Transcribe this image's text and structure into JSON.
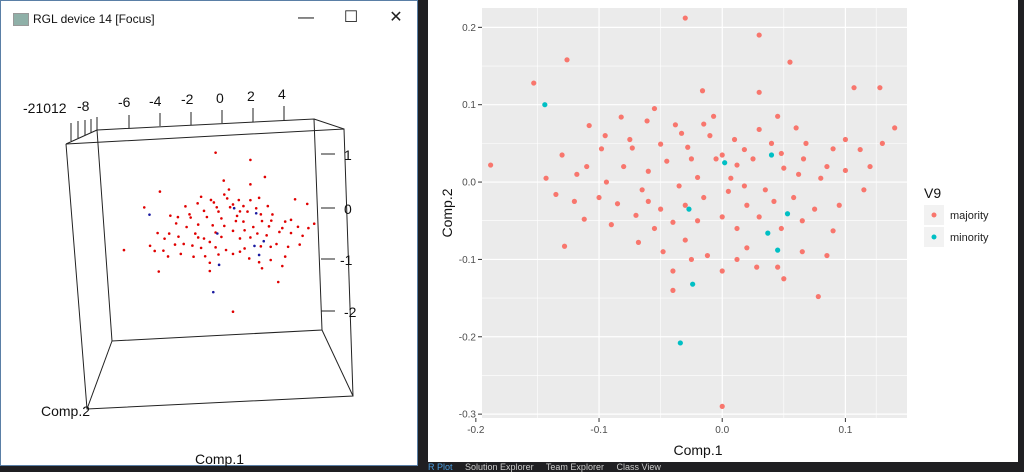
{
  "rgl_window": {
    "title": "RGL device 14 [Focus]",
    "controls": {
      "minimize": "—",
      "maximize": "☐",
      "close": "✕"
    },
    "top_ticks": [
      "-6",
      "-4",
      "-2",
      "0",
      "2",
      "4"
    ],
    "top_ticks_overlap": [
      "-21012",
      "-8"
    ],
    "right_ticks": [
      "1",
      "0",
      "-1",
      "-2"
    ],
    "xlabel": "Comp.1",
    "ylabel": "Comp.2"
  },
  "bottom_tabs": [
    "R Plot",
    "Solution Explorer",
    "Team Explorer",
    "Class View"
  ],
  "colors": {
    "majority": "#F8766D",
    "minority": "#00BFC4",
    "panel": "#EBEBEB",
    "rgl_point": "#e00000",
    "rgl_minority": "#1a1aa0"
  },
  "chart_data": {
    "type": "scatter",
    "xlabel": "Comp.1",
    "ylabel": "Comp.2",
    "xlim": [
      -0.195,
      0.15
    ],
    "ylim": [
      -0.305,
      0.225
    ],
    "xticks": [
      "-0.2",
      "-0.1",
      "0.0",
      "0.1"
    ],
    "xtick_values": [
      -0.2,
      -0.1,
      0,
      0.1
    ],
    "yticks": [
      "0.2",
      "0.1",
      "0.0",
      "-0.1",
      "-0.2",
      "-0.3"
    ],
    "ytick_values": [
      0.2,
      0.1,
      0,
      -0.1,
      -0.2,
      -0.3
    ],
    "grid": true,
    "legend": {
      "title": "V9",
      "position": "right",
      "entries": [
        "majority",
        "minority"
      ]
    },
    "series": [
      {
        "name": "majority",
        "points": [
          [
            -0.188,
            0.022
          ],
          [
            -0.153,
            0.128
          ],
          [
            -0.126,
            0.158
          ],
          [
            -0.03,
            0.212
          ],
          [
            0.03,
            0.19
          ],
          [
            0.055,
            0.155
          ],
          [
            0.128,
            0.122
          ],
          [
            0.14,
            0.07
          ],
          [
            -0.128,
            -0.083
          ],
          [
            0.078,
            -0.148
          ],
          [
            0.0,
            -0.29
          ],
          [
            -0.016,
            0.118
          ],
          [
            0.03,
            0.116
          ],
          [
            -0.007,
            0.085
          ],
          [
            0.107,
            0.122
          ],
          [
            -0.108,
            0.073
          ],
          [
            -0.082,
            0.084
          ],
          [
            -0.061,
            0.079
          ],
          [
            -0.038,
            0.074
          ],
          [
            -0.13,
            0.035
          ],
          [
            -0.098,
            0.043
          ],
          [
            -0.073,
            0.044
          ],
          [
            -0.05,
            0.049
          ],
          [
            -0.033,
            0.063
          ],
          [
            -0.01,
            0.06
          ],
          [
            0.01,
            0.055
          ],
          [
            0.03,
            0.068
          ],
          [
            0.045,
            0.085
          ],
          [
            0.068,
            0.05
          ],
          [
            0.09,
            0.043
          ],
          [
            0.112,
            0.042
          ],
          [
            0.13,
            0.05
          ],
          [
            -0.143,
            0.005
          ],
          [
            -0.118,
            0.01
          ],
          [
            -0.094,
            0.0
          ],
          [
            -0.08,
            0.02
          ],
          [
            -0.06,
            0.014
          ],
          [
            -0.045,
            0.027
          ],
          [
            -0.025,
            0.03
          ],
          [
            -0.02,
            0.006
          ],
          [
            0.0,
            0.035
          ],
          [
            0.012,
            0.022
          ],
          [
            0.025,
            0.03
          ],
          [
            0.05,
            0.018
          ],
          [
            0.066,
            0.03
          ],
          [
            0.08,
            0.005
          ],
          [
            0.1,
            0.015
          ],
          [
            0.12,
            0.02
          ],
          [
            -0.135,
            -0.016
          ],
          [
            -0.12,
            -0.025
          ],
          [
            -0.1,
            -0.02
          ],
          [
            -0.085,
            -0.028
          ],
          [
            -0.065,
            -0.01
          ],
          [
            -0.05,
            -0.035
          ],
          [
            -0.035,
            -0.005
          ],
          [
            -0.015,
            -0.02
          ],
          [
            0.005,
            -0.012
          ],
          [
            0.02,
            -0.03
          ],
          [
            0.035,
            -0.01
          ],
          [
            0.058,
            -0.02
          ],
          [
            0.075,
            -0.035
          ],
          [
            0.095,
            -0.03
          ],
          [
            0.115,
            -0.01
          ],
          [
            -0.112,
            -0.048
          ],
          [
            -0.09,
            -0.055
          ],
          [
            -0.07,
            -0.043
          ],
          [
            -0.055,
            -0.06
          ],
          [
            -0.04,
            -0.052
          ],
          [
            -0.02,
            -0.05
          ],
          [
            0.0,
            -0.045
          ],
          [
            0.012,
            -0.06
          ],
          [
            0.03,
            -0.045
          ],
          [
            0.048,
            -0.06
          ],
          [
            0.065,
            -0.05
          ],
          [
            0.09,
            -0.063
          ],
          [
            -0.068,
            -0.078
          ],
          [
            -0.048,
            -0.09
          ],
          [
            -0.03,
            -0.075
          ],
          [
            -0.012,
            -0.095
          ],
          [
            0.012,
            -0.1
          ],
          [
            0.02,
            -0.085
          ],
          [
            0.045,
            -0.11
          ],
          [
            0.05,
            -0.125
          ],
          [
            0.065,
            -0.09
          ],
          [
            0.085,
            -0.095
          ],
          [
            -0.04,
            -0.115
          ],
          [
            -0.025,
            -0.1
          ],
          [
            -0.04,
            -0.14
          ],
          [
            0.0,
            -0.115
          ],
          [
            0.028,
            -0.11
          ],
          [
            -0.095,
            0.06
          ],
          [
            -0.055,
            0.095
          ],
          [
            -0.028,
            0.045
          ],
          [
            -0.005,
            0.03
          ],
          [
            0.018,
            0.042
          ],
          [
            0.04,
            0.05
          ],
          [
            0.06,
            0.07
          ],
          [
            0.1,
            0.055
          ],
          [
            -0.075,
            0.055
          ],
          [
            -0.015,
            0.075
          ],
          [
            0.007,
            0.005
          ],
          [
            0.042,
            -0.025
          ],
          [
            -0.06,
            -0.025
          ],
          [
            -0.03,
            -0.03
          ],
          [
            0.062,
            0.01
          ],
          [
            0.085,
            0.02
          ],
          [
            -0.11,
            0.02
          ],
          [
            0.018,
            -0.005
          ],
          [
            0.048,
            0.037
          ]
        ]
      },
      {
        "name": "minority",
        "points": [
          [
            -0.144,
            0.1
          ],
          [
            -0.027,
            -0.035
          ],
          [
            -0.024,
            -0.132
          ],
          [
            -0.034,
            -0.208
          ],
          [
            0.04,
            0.035
          ],
          [
            0.037,
            -0.066
          ],
          [
            0.045,
            -0.088
          ],
          [
            0.053,
            -0.041
          ],
          [
            0.002,
            0.025
          ]
        ]
      }
    ]
  }
}
